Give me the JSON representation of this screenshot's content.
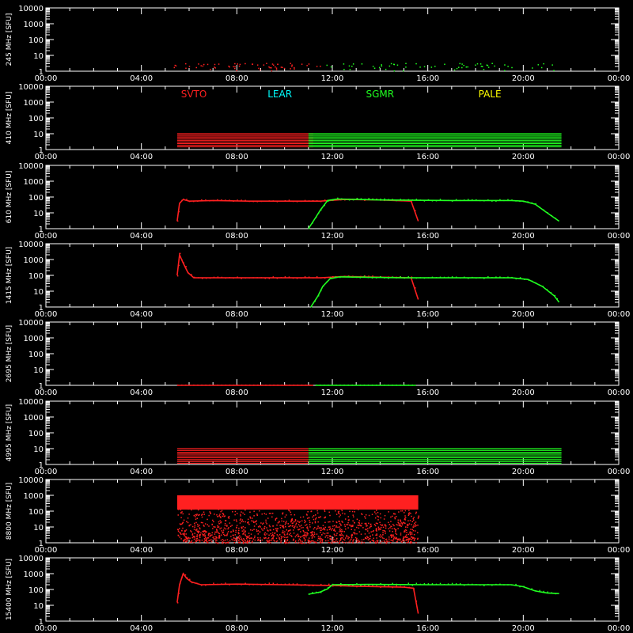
{
  "colors": {
    "background": "#000000",
    "axes": "#ffffff",
    "SVTO": "#ff2020",
    "LEAR": "#00ffff",
    "SGMR": "#20ff20",
    "PALE": "#ffff00"
  },
  "chart_data": {
    "type": "scatter",
    "x_unit": "UT time (hours)",
    "x_range": [
      0,
      24
    ],
    "x_ticks": [
      "00:00",
      "04:00",
      "08:00",
      "12:00",
      "16:00",
      "20:00",
      "00:00"
    ],
    "y_scale": "log",
    "y_range": [
      1,
      10000
    ],
    "y_ticks": [
      "1",
      "10",
      "100",
      "1000",
      "10000"
    ],
    "legend": [
      "SVTO",
      "LEAR",
      "SGMR",
      "PALE"
    ],
    "panels": [
      {
        "ylabel": "245 MHz [SFU]",
        "series": [
          {
            "name": "SVTO",
            "style": "scatter_low",
            "x_range": [
              5.3,
              11.5
            ],
            "y_range": [
              1,
              3
            ]
          },
          {
            "name": "SGMR",
            "style": "scatter_low",
            "x_range": [
              11.5,
              21.5
            ],
            "y_range": [
              1,
              3
            ]
          }
        ]
      },
      {
        "ylabel": "410 MHz [SFU]",
        "series": [
          {
            "name": "SVTO",
            "style": "band",
            "x_range": [
              5.5,
              11.2
            ],
            "y_range": [
              1.5,
              10
            ]
          },
          {
            "name": "SGMR",
            "style": "band",
            "x_range": [
              11.0,
              21.6
            ],
            "y_range": [
              1.5,
              10
            ]
          }
        ]
      },
      {
        "ylabel": "610 MHz [SFU]",
        "series": [
          {
            "name": "SVTO",
            "points": [
              [
                5.5,
                3
              ],
              [
                5.6,
                40
              ],
              [
                5.75,
                70
              ],
              [
                6.0,
                55
              ],
              [
                7.0,
                60
              ],
              [
                8.5,
                55
              ],
              [
                10.5,
                55
              ],
              [
                11.5,
                55
              ],
              [
                12.5,
                70
              ],
              [
                14.0,
                65
              ],
              [
                15.3,
                55
              ],
              [
                15.6,
                3
              ]
            ]
          },
          {
            "name": "SGMR",
            "points": [
              [
                11.0,
                1
              ],
              [
                11.3,
                5
              ],
              [
                11.5,
                15
              ],
              [
                11.8,
                60
              ],
              [
                12.2,
                75
              ],
              [
                14.0,
                65
              ],
              [
                17.0,
                60
              ],
              [
                19.5,
                60
              ],
              [
                20.0,
                55
              ],
              [
                20.5,
                35
              ],
              [
                21.0,
                10
              ],
              [
                21.5,
                3
              ]
            ]
          }
        ]
      },
      {
        "ylabel": "1415 MHz [SFU]",
        "series": [
          {
            "name": "SVTO",
            "points": [
              [
                5.5,
                100
              ],
              [
                5.6,
                2000
              ],
              [
                5.75,
                600
              ],
              [
                5.95,
                150
              ],
              [
                6.2,
                70
              ],
              [
                8.0,
                70
              ],
              [
                10.0,
                70
              ],
              [
                11.5,
                70
              ],
              [
                12.5,
                85
              ],
              [
                14.5,
                75
              ],
              [
                15.3,
                70
              ],
              [
                15.6,
                3
              ]
            ]
          },
          {
            "name": "SGMR",
            "points": [
              [
                11.1,
                1
              ],
              [
                11.4,
                5
              ],
              [
                11.6,
                20
              ],
              [
                11.9,
                60
              ],
              [
                12.3,
                80
              ],
              [
                15.0,
                70
              ],
              [
                19.5,
                70
              ],
              [
                20.2,
                55
              ],
              [
                20.8,
                20
              ],
              [
                21.3,
                5
              ],
              [
                21.5,
                2
              ]
            ]
          }
        ]
      },
      {
        "ylabel": "2695 MHz [SFU]",
        "series": [
          {
            "name": "SVTO",
            "points": [
              [
                5.5,
                1
              ],
              [
                11.2,
                1
              ]
            ]
          },
          {
            "name": "SGMR",
            "points": [
              [
                11.3,
                1
              ],
              [
                15.5,
                1
              ]
            ]
          }
        ]
      },
      {
        "ylabel": "4995 MHz [SFU]",
        "series": [
          {
            "name": "SVTO",
            "style": "band",
            "x_range": [
              5.5,
              11.0
            ],
            "y_range": [
              1.2,
              10
            ]
          },
          {
            "name": "SGMR",
            "style": "band",
            "x_range": [
              11.0,
              21.6
            ],
            "y_range": [
              1.2,
              10
            ]
          }
        ]
      },
      {
        "ylabel": "8800 MHz [SFU]",
        "series": [
          {
            "name": "SVTO",
            "style": "noise",
            "x_range": [
              5.5,
              15.6
            ],
            "y_range": [
              1,
              1000
            ]
          }
        ]
      },
      {
        "ylabel": "15400 MHz [SFU]",
        "series": [
          {
            "name": "SVTO",
            "points": [
              [
                5.5,
                15
              ],
              [
                5.6,
                200
              ],
              [
                5.75,
                1000
              ],
              [
                5.9,
                500
              ],
              [
                6.1,
                300
              ],
              [
                6.5,
                200
              ],
              [
                8.0,
                220
              ],
              [
                10.0,
                200
              ],
              [
                11.0,
                190
              ],
              [
                12.0,
                180
              ],
              [
                13.0,
                160
              ],
              [
                15.0,
                140
              ],
              [
                15.4,
                120
              ],
              [
                15.6,
                3
              ]
            ]
          },
          {
            "name": "SGMR",
            "points": [
              [
                11.0,
                50
              ],
              [
                11.3,
                60
              ],
              [
                11.5,
                70
              ],
              [
                11.8,
                110
              ],
              [
                12.0,
                200
              ],
              [
                13.5,
                210
              ],
              [
                16.0,
                200
              ],
              [
                19.5,
                200
              ],
              [
                20.0,
                150
              ],
              [
                20.5,
                80
              ],
              [
                21.0,
                60
              ],
              [
                21.5,
                55
              ]
            ]
          }
        ]
      }
    ]
  }
}
